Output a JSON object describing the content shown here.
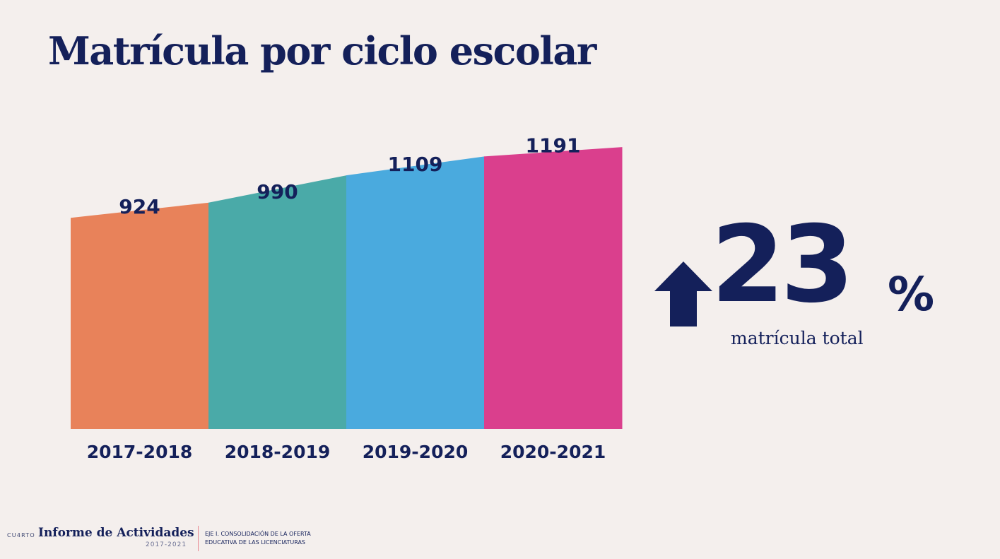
{
  "title": "Matrícula por ciclo escolar",
  "chart_data": {
    "type": "area",
    "categories": [
      "2017-2018",
      "2018-2019",
      "2019-2020",
      "2020-2021"
    ],
    "values": [
      924,
      990,
      1109,
      1191
    ],
    "colors": [
      "#e8825a",
      "#4aaaa8",
      "#4aaade",
      "#da3f8d"
    ],
    "grid": false,
    "legend": "none"
  },
  "kpi": {
    "value": "23",
    "unit": "%",
    "caption": "matrícula total",
    "direction_icon": "arrow-up-icon"
  },
  "footer": {
    "prefix": "CU4RTO",
    "brand": "Informe de Actividades",
    "years": "2017-2021",
    "axis_line1": "EJE I. CONSOLIDACIÓN DE LA OFERTA",
    "axis_line2": "EDUCATIVA DE LAS LICENCIATURAS"
  }
}
